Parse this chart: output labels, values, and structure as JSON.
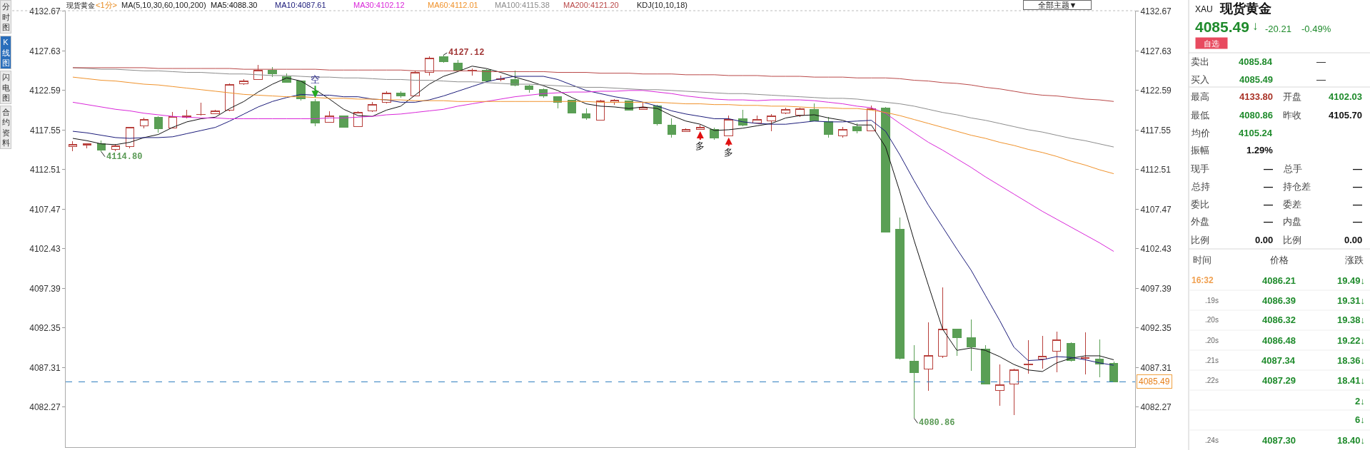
{
  "chart_data": [
    {
      "type": "candlestick",
      "title": "现货黄金",
      "subtitle": "<1分>",
      "categories": [
        null,
        null,
        null,
        null,
        null,
        null,
        null,
        null,
        null,
        null,
        null,
        null,
        null,
        null,
        null,
        null,
        null,
        null,
        null,
        null,
        null,
        null,
        null,
        null,
        null,
        null,
        null,
        null,
        null,
        null,
        null,
        null,
        null,
        null,
        null,
        null,
        null,
        null,
        null,
        null,
        null,
        null,
        null,
        null,
        null,
        null,
        null,
        null,
        null,
        null,
        null,
        null,
        null,
        null,
        null,
        null,
        null,
        null,
        null,
        null,
        null,
        null,
        null,
        null,
        null,
        null,
        null,
        null,
        null,
        null,
        null,
        null,
        null,
        null
      ],
      "ohlc": [
        [
          4115.46,
          4116.18,
          4114.9,
          4115.75
        ],
        [
          4115.65,
          4115.9,
          4115.25,
          4115.79
        ],
        [
          4115.82,
          4116.25,
          4114.8,
          4115.0
        ],
        [
          4115.1,
          4115.82,
          4114.85,
          4115.57
        ],
        [
          4115.46,
          4118.0,
          4115.2,
          4117.91
        ],
        [
          4118.09,
          4119.17,
          4117.73,
          4118.95
        ],
        [
          4119.17,
          4119.3,
          4117.26,
          4117.73
        ],
        [
          4117.8,
          4119.89,
          4117.78,
          4119.24
        ],
        [
          4119.17,
          4120.18,
          4119.06,
          4119.39
        ],
        [
          4119.5,
          4121.04,
          4119.45,
          4119.56
        ],
        [
          4119.67,
          4120.18,
          4119.6,
          4120.03
        ],
        [
          4120.07,
          4123.49,
          4119.96,
          4123.38
        ],
        [
          4123.49,
          4124.0,
          4123.3,
          4123.85
        ],
        [
          4124.03,
          4125.9,
          4124.02,
          4125.15
        ],
        [
          4125.15,
          4125.54,
          4124.35,
          4124.71
        ],
        [
          4124.35,
          4124.79,
          4123.6,
          4123.67
        ],
        [
          4123.78,
          4123.8,
          4121.29,
          4121.5
        ],
        [
          4121.22,
          4121.47,
          4118.05,
          4118.45
        ],
        [
          4118.59,
          4119.96,
          4118.5,
          4119.35
        ],
        [
          4119.35,
          4119.4,
          4117.9,
          4117.95
        ],
        [
          4118.02,
          4119.96,
          4117.95,
          4119.85
        ],
        [
          4119.96,
          4121.11,
          4119.85,
          4120.86
        ],
        [
          4121.11,
          4122.48,
          4120.97,
          4122.27
        ],
        [
          4122.3,
          4122.48,
          4121.65,
          4121.94
        ],
        [
          4121.94,
          4125.11,
          4121.83,
          4124.93
        ],
        [
          4124.86,
          4126.98,
          4124.53,
          4126.73
        ],
        [
          4126.9,
          4127.12,
          4126.1,
          4126.25
        ],
        [
          4126.05,
          4126.5,
          4125.1,
          4125.14
        ],
        [
          4125.1,
          4125.4,
          4124.5,
          4125.2
        ],
        [
          4125.14,
          4125.3,
          4123.7,
          4123.81
        ],
        [
          4124.0,
          4124.5,
          4123.75,
          4124.08
        ],
        [
          4124.0,
          4125.1,
          4123.15,
          4123.23
        ],
        [
          4123.15,
          4123.34,
          4122.35,
          4122.73
        ],
        [
          4122.73,
          4122.85,
          4121.7,
          4121.89
        ],
        [
          4121.77,
          4121.89,
          4120.36,
          4121.12
        ],
        [
          4121.32,
          4121.35,
          4119.7,
          4119.71
        ],
        [
          4119.59,
          4120.36,
          4118.83,
          4119.1
        ],
        [
          4118.83,
          4121.43,
          4118.8,
          4121.24
        ],
        [
          4121.12,
          4121.51,
          4120.74,
          4121.32
        ],
        [
          4121.24,
          4121.32,
          4120.09,
          4120.1
        ],
        [
          4120.17,
          4121.12,
          4120.15,
          4120.47
        ],
        [
          4120.63,
          4120.74,
          4118.14,
          4118.33
        ],
        [
          4118.14,
          4119.02,
          4116.61,
          4116.99
        ],
        [
          4117.37,
          4117.8,
          4117.3,
          4117.68
        ],
        [
          4117.68,
          4118.25,
          4117.6,
          4117.95
        ],
        [
          4117.68,
          4117.87,
          4116.34,
          4116.53
        ],
        [
          4116.8,
          4119.4,
          4116.79,
          4118.9
        ],
        [
          4119.02,
          4120.17,
          4118.06,
          4118.14
        ],
        [
          4118.45,
          4119.41,
          4118.37,
          4118.9
        ],
        [
          4118.75,
          4119.59,
          4117.37,
          4119.4
        ],
        [
          4119.71,
          4120.44,
          4119.59,
          4120.17
        ],
        [
          4119.48,
          4120.45,
          4119.21,
          4120.24
        ],
        [
          4120.17,
          4120.93,
          4118.71,
          4118.75
        ],
        [
          4118.64,
          4119.21,
          4116.62,
          4116.99
        ],
        [
          4116.8,
          4117.99,
          4116.6,
          4117.68
        ],
        [
          4117.99,
          4118.37,
          4117.18,
          4117.41
        ],
        [
          4117.49,
          4120.66,
          4117.41,
          4120.28
        ],
        [
          4120.4,
          4120.48,
          4104.55,
          4104.58
        ],
        [
          4104.89,
          4106.39,
          4088.3,
          4088.51
        ],
        [
          4088.15,
          4090.18,
          4080.86,
          4086.69
        ],
        [
          4087.15,
          4093.04,
          4084.33,
          4088.81
        ],
        [
          4088.75,
          4097.51,
          4088.51,
          4092.23
        ],
        [
          4092.2,
          4092.22,
          4088.81,
          4091.09
        ],
        [
          4091.09,
          4093.41,
          4086.9,
          4089.93
        ],
        [
          4089.63,
          4090.18,
          4085.22,
          4085.24
        ],
        [
          4084.42,
          4087.75,
          4082.45,
          4085.12
        ],
        [
          4085.18,
          4087.15,
          4081.24,
          4087.0
        ],
        [
          4087.66,
          4090.78,
          4086.54,
          4087.75
        ],
        [
          4088.36,
          4091.33,
          4087.15,
          4088.72
        ],
        [
          4089.42,
          4091.9,
          4086.69,
          4090.88
        ],
        [
          4090.39,
          4090.48,
          4088.06,
          4088.21
        ],
        [
          4088.45,
          4091.84,
          4086.45,
          4088.57
        ],
        [
          4088.36,
          4090.87,
          4086.09,
          4087.75
        ],
        [
          4087.84,
          4088.1,
          4085.49,
          4085.49
        ]
      ],
      "colors": [
        "#b8403c",
        "#b8403c",
        "#5a9f55",
        "#b8403c",
        "#b8403c",
        "#b8403c",
        "#5a9f55",
        "#b8403c",
        "#b8403c",
        "#b8403c",
        "#b8403c",
        "#b8403c",
        "#b8403c",
        "#b8403c",
        "#5a9f55",
        "#5a9f55",
        "#5a9f55",
        "#5a9f55",
        "#b8403c",
        "#5a9f55",
        "#b8403c",
        "#b8403c",
        "#b8403c",
        "#5a9f55",
        "#b8403c",
        "#b8403c",
        "#5a9f55",
        "#5a9f55",
        "#b8403c",
        "#5a9f55",
        "#b8403c",
        "#5a9f55",
        "#5a9f55",
        "#5a9f55",
        "#5a9f55",
        "#5a9f55",
        "#5a9f55",
        "#b8403c",
        "#b8403c",
        "#5a9f55",
        "#b8403c",
        "#5a9f55",
        "#5a9f55",
        "#b8403c",
        "#b8403c",
        "#5a9f55",
        "#b8403c",
        "#5a9f55",
        "#b8403c",
        "#b8403c",
        "#b8403c",
        "#b8403c",
        "#5a9f55",
        "#5a9f55",
        "#b8403c",
        "#5a9f55",
        "#b8403c",
        "#5a9f55",
        "#5a9f55",
        "#5a9f55",
        "#b8403c",
        "#b8403c",
        "#5a9f55",
        "#5a9f55",
        "#5a9f55",
        "#b8403c",
        "#b8403c",
        "#b8403c",
        "#b8403c",
        "#b8403c",
        "#5a9f55",
        "#b8403c",
        "#5a9f55",
        "#5a9f55"
      ],
      "series": [
        {
          "name": "MA5:4088.30",
          "type": "line",
          "color": "#111111",
          "values": [
            4116.5,
            4116.2,
            4115.8,
            4115.7,
            4116.0,
            4116.6,
            4117.0,
            4117.9,
            4118.6,
            4119.0,
            4119.2,
            4120.3,
            4121.2,
            4122.4,
            4123.4,
            4124.2,
            4123.8,
            4122.7,
            4121.5,
            4120.2,
            4119.4,
            4119.3,
            4120.1,
            4120.6,
            4122.0,
            4123.4,
            4124.4,
            4125.0,
            4125.7,
            4125.4,
            4124.9,
            4124.3,
            4123.8,
            4123.2,
            4122.6,
            4121.7,
            4120.9,
            4120.6,
            4120.5,
            4120.3,
            4120.5,
            4120.3,
            4119.4,
            4118.7,
            4118.3,
            4117.5,
            4117.6,
            4117.8,
            4118.1,
            4118.4,
            4119.1,
            4119.4,
            4119.5,
            4119.1,
            4118.8,
            4118.2,
            4118.2,
            4115.4,
            4109.7,
            4103.5,
            4097.8,
            4092.2,
            4089.5,
            4089.8,
            4089.5,
            4088.7,
            4087.7,
            4087.0,
            4086.8,
            4087.9,
            4088.5,
            4088.8,
            4088.8,
            4088.3
          ]
        },
        {
          "name": "MA10:4087.61",
          "type": "line",
          "color": "#1b1b7a",
          "values": [
            4117.4,
            4117.2,
            4116.9,
            4116.6,
            4116.5,
            4116.6,
            4116.6,
            4116.7,
            4117.1,
            4117.5,
            4117.9,
            4118.7,
            4119.6,
            4120.5,
            4121.2,
            4121.7,
            4122.1,
            4122.0,
            4122.0,
            4121.8,
            4121.8,
            4121.5,
            4121.4,
            4121.1,
            4121.1,
            4121.4,
            4121.9,
            4122.5,
            4123.1,
            4123.7,
            4124.1,
            4124.4,
            4124.4,
            4124.4,
            4124.0,
            4123.3,
            4122.6,
            4122.2,
            4121.8,
            4121.5,
            4121.1,
            4120.6,
            4120.0,
            4119.6,
            4119.3,
            4119.0,
            4119.0,
            4118.6,
            4118.4,
            4118.3,
            4118.3,
            4118.5,
            4118.7,
            4118.6,
            4118.6,
            4118.7,
            4118.8,
            4117.4,
            4114.4,
            4111.1,
            4108.0,
            4105.2,
            4102.4,
            4099.7,
            4096.5,
            4093.3,
            4089.9,
            4088.2,
            4088.3,
            4088.7,
            4088.6,
            4088.3,
            4087.9,
            4087.6
          ]
        },
        {
          "name": "MA30:4102.12",
          "type": "line",
          "color": "#d926d9",
          "values": [
            4121.1,
            4120.8,
            4120.5,
            4120.2,
            4120.0,
            4119.7,
            4119.5,
            4119.3,
            4119.2,
            4119.1,
            4119.1,
            4119.0,
            4119.0,
            4119.0,
            4119.0,
            4119.0,
            4119.0,
            4119.0,
            4119.1,
            4119.1,
            4119.2,
            4119.3,
            4119.5,
            4119.6,
            4119.8,
            4120.0,
            4120.2,
            4120.6,
            4120.9,
            4121.2,
            4121.5,
            4121.8,
            4122.0,
            4122.2,
            4122.3,
            4122.4,
            4122.4,
            4122.5,
            4122.5,
            4122.6,
            4122.6,
            4122.4,
            4122.2,
            4121.9,
            4121.7,
            4121.5,
            4121.4,
            4121.4,
            4121.3,
            4121.4,
            4121.4,
            4121.4,
            4121.3,
            4121.1,
            4120.9,
            4120.6,
            4120.4,
            4119.7,
            4118.4,
            4117.2,
            4116.0,
            4115.0,
            4113.9,
            4112.8,
            4111.6,
            4110.5,
            4109.4,
            4108.3,
            4107.2,
            4106.2,
            4105.2,
            4104.2,
            4103.2,
            4102.1
          ]
        },
        {
          "name": "MA60:4112.01",
          "type": "line",
          "color": "#f0922b",
          "values": [
            4124.3,
            4124.1,
            4123.9,
            4123.8,
            4123.6,
            4123.4,
            4123.3,
            4123.1,
            4122.9,
            4122.7,
            4122.5,
            4122.3,
            4122.1,
            4122.0,
            4121.9,
            4121.8,
            4121.8,
            4121.7,
            4121.6,
            4121.6,
            4121.5,
            4121.5,
            4121.4,
            4121.4,
            4121.3,
            4121.3,
            4121.3,
            4121.2,
            4121.2,
            4121.2,
            4121.2,
            4121.2,
            4121.2,
            4121.2,
            4121.2,
            4121.2,
            4121.2,
            4121.1,
            4121.1,
            4121.1,
            4121.1,
            4121.1,
            4121.0,
            4120.9,
            4120.9,
            4120.8,
            4120.8,
            4120.7,
            4120.7,
            4120.6,
            4120.6,
            4120.5,
            4120.4,
            4120.4,
            4120.3,
            4120.3,
            4120.1,
            4119.8,
            4119.4,
            4118.9,
            4118.4,
            4117.9,
            4117.4,
            4116.9,
            4116.5,
            4116.0,
            4115.6,
            4115.1,
            4114.7,
            4114.2,
            4113.6,
            4113.1,
            4112.5,
            4112.0
          ]
        },
        {
          "name": "MA100:4115.38",
          "type": "line",
          "color": "#8c8c8c",
          "values": [
            4125.5,
            4125.4,
            4125.3,
            4125.3,
            4125.2,
            4125.1,
            4125.1,
            4125.0,
            4124.9,
            4124.9,
            4124.8,
            4124.7,
            4124.7,
            4124.6,
            4124.5,
            4124.5,
            4124.4,
            4124.3,
            4124.3,
            4124.2,
            4124.2,
            4124.1,
            4124.0,
            4124.0,
            4123.9,
            4123.9,
            4123.8,
            4123.7,
            4123.7,
            4123.6,
            4123.5,
            4123.4,
            4123.4,
            4123.3,
            4123.2,
            4123.1,
            4123.0,
            4123.0,
            4122.9,
            4122.8,
            4122.7,
            4122.7,
            4122.6,
            4122.5,
            4122.4,
            4122.3,
            4122.2,
            4122.2,
            4122.1,
            4122.0,
            4121.9,
            4121.8,
            4121.7,
            4121.6,
            4121.6,
            4121.5,
            4121.3,
            4121.1,
            4120.9,
            4120.6,
            4120.2,
            4119.8,
            4119.5,
            4119.1,
            4118.8,
            4118.4,
            4118.0,
            4117.6,
            4117.3,
            4116.9,
            4116.5,
            4116.2,
            4115.8,
            4115.4
          ]
        },
        {
          "name": "MA200:4121.20",
          "type": "line",
          "color": "#b94848",
          "values": [
            4125.5,
            4125.5,
            4125.5,
            4125.5,
            4125.5,
            4125.5,
            4125.4,
            4125.4,
            4125.4,
            4125.4,
            4125.4,
            4125.4,
            4125.3,
            4125.3,
            4125.3,
            4125.3,
            4125.3,
            4125.3,
            4125.2,
            4125.2,
            4125.2,
            4125.2,
            4125.2,
            4125.2,
            4125.1,
            4125.1,
            4125.1,
            4125.1,
            4125.1,
            4125.0,
            4125.0,
            4125.0,
            4125.0,
            4125.0,
            4124.9,
            4124.9,
            4124.9,
            4124.8,
            4124.8,
            4124.8,
            4124.7,
            4124.7,
            4124.7,
            4124.6,
            4124.6,
            4124.6,
            4124.5,
            4124.5,
            4124.5,
            4124.4,
            4124.4,
            4124.4,
            4124.3,
            4124.3,
            4124.3,
            4124.2,
            4124.2,
            4124.2,
            4124.1,
            4123.9,
            4123.8,
            4123.6,
            4123.5,
            4123.3,
            4123.0,
            4122.8,
            4122.5,
            4122.2,
            4122.0,
            4121.9,
            4121.7,
            4121.5,
            4121.4,
            4121.2
          ]
        }
      ],
      "value_labels": [
        null,
        null,
        "4114.80",
        null,
        null,
        null,
        null,
        null,
        null,
        null,
        null,
        null,
        null,
        null,
        null,
        null,
        null,
        null,
        null,
        null,
        null,
        null,
        null,
        null,
        null,
        null,
        "4127.12",
        null,
        null,
        null,
        null,
        null,
        null,
        null,
        null,
        null,
        null,
        null,
        null,
        null,
        null,
        null,
        null,
        null,
        null,
        null,
        null,
        null,
        null,
        null,
        null,
        null,
        null,
        null,
        null,
        null,
        null,
        null,
        null,
        "4080.86",
        null,
        null,
        null,
        null,
        null,
        null,
        null,
        null,
        null,
        null,
        null,
        null,
        null,
        null
      ],
      "ylim": [
        4077.17,
        4132.76
      ],
      "yticks": [
        4082.27,
        4087.31,
        4092.35,
        4097.39,
        4102.43,
        4107.47,
        4112.51,
        4117.55,
        4122.59,
        4127.63,
        4132.67
      ],
      "y2lim": [
        4077.17,
        4132.76
      ],
      "y2ticks": [
        4082.27,
        4087.31,
        4092.35,
        4097.39,
        4102.43,
        4107.47,
        4112.51,
        4117.55,
        4122.59,
        4127.63,
        4132.67
      ],
      "ref_lines": [
        {
          "axis": "y",
          "value": 4085.49,
          "label": "4085.49",
          "color": "#2b7bbf",
          "line_style": "dashed"
        }
      ],
      "annotations": [
        "MA(5,10,30,60,100,200)",
        "KDJ(10,10,18)",
        "全部主题▼",
        "分时图",
        "K线图",
        "闪电图",
        "合约资料",
        {
          "text": "空",
          "y": 4121.47
        },
        {
          "text": "多",
          "y": 4117.6
        },
        {
          "text": "多",
          "y": 4116.79
        }
      ]
    },
    {
      "type": "other",
      "title": "现货黄金",
      "subtitle": "XAU",
      "annotations": [
        "4085.49",
        "↓",
        "-20.21",
        "-0.49%",
        "自选",
        "卖出",
        "4085.84",
        "—",
        "买入",
        "4085.49",
        "—",
        "最高",
        "4133.80",
        "开盘",
        "4102.03",
        "最低",
        "4080.86",
        "昨收",
        "4105.70",
        "均价",
        "4105.24",
        "振幅",
        "1.29%",
        "现手",
        "—",
        "总手",
        "—",
        "总持",
        "—",
        "持仓差",
        "—",
        "委比",
        "—",
        "委差",
        "—",
        "外盘",
        "—",
        "内盘",
        "—",
        "比例",
        "0.00",
        "比例",
        "0.00",
        "时间",
        "价格",
        "涨跌",
        "16:32",
        "4086.21",
        "19.49↓",
        ".19s",
        "4086.39",
        "19.31↓",
        ".20s",
        "4086.32",
        "19.38↓",
        ".20s",
        "4086.48",
        "19.22↓",
        ".21s",
        "4087.34",
        "18.36↓",
        ".22s",
        "4087.29",
        "18.41↓",
        "2↓",
        "6↓",
        ".24s",
        "4087.30",
        "18.40↓"
      ]
    }
  ]
}
